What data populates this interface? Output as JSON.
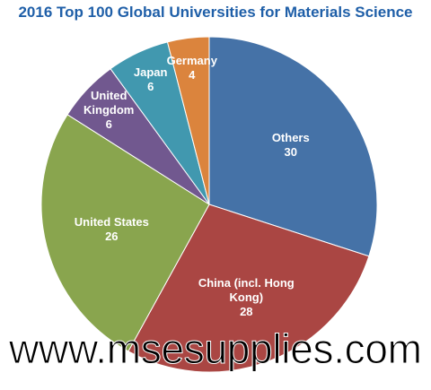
{
  "chart_data": {
    "type": "pie",
    "title": "2016 Top 100 Global Universities for Materials Science",
    "categories": [
      "Others",
      "China (incl. Hong Kong)",
      "United States",
      "United Kingdom",
      "Japan",
      "Germany"
    ],
    "values": [
      30,
      28,
      26,
      6,
      6,
      4
    ],
    "colors": [
      "#4572a7",
      "#aa4643",
      "#89a54e",
      "#71588f",
      "#4198af",
      "#db843d"
    ]
  },
  "watermark": "www.msesupplies.com"
}
